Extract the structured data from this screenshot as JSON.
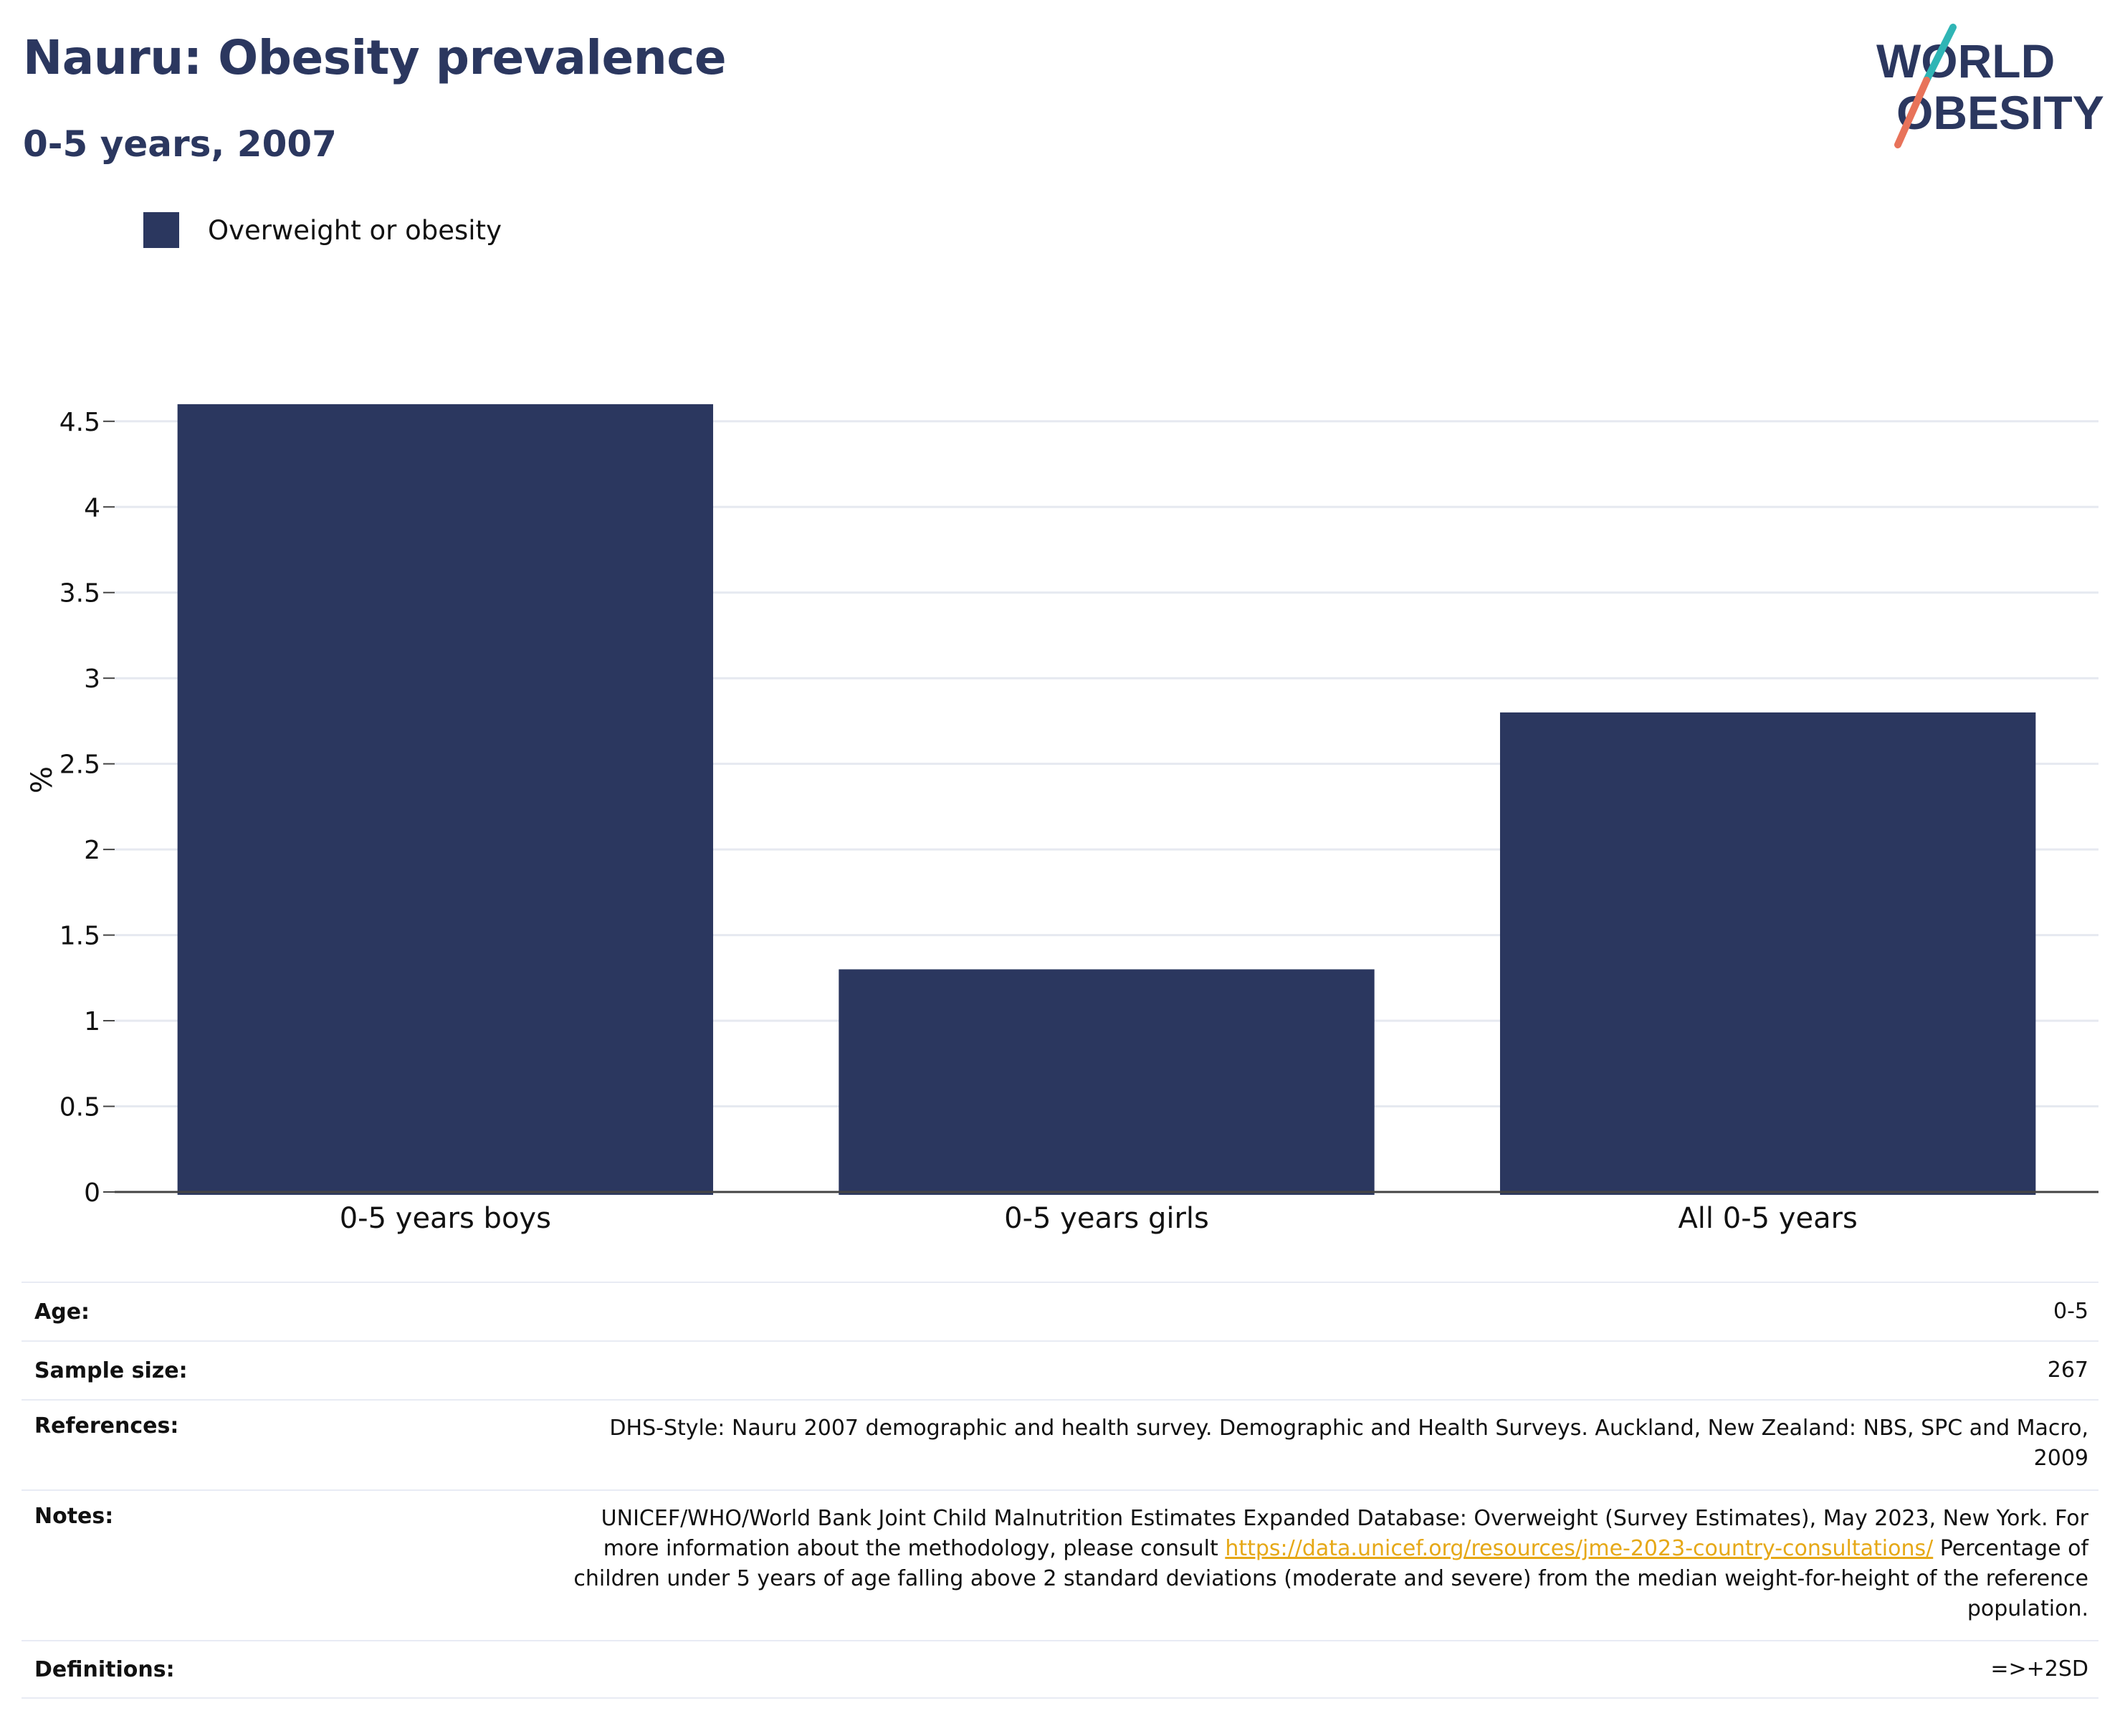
{
  "header": {
    "title": "Nauru: Obesity prevalence",
    "subtitle": "0-5 years, 2007"
  },
  "logo": {
    "line1": "WORLD",
    "line2": "OBESITY"
  },
  "colors": {
    "bar": "#2b375f",
    "grid": "#e6e9f0",
    "link": "#e6a817",
    "logo_teal": "#2fb5b5",
    "logo_coral": "#e8735a"
  },
  "chart_data": {
    "type": "bar",
    "categories": [
      "0-5 years boys",
      "0-5 years girls",
      "All 0-5 years"
    ],
    "series": [
      {
        "name": "Overweight or obesity",
        "values": [
          4.6,
          1.3,
          2.8
        ]
      }
    ],
    "ylabel": "%",
    "xlabel": "",
    "ylim": [
      0,
      4.7
    ],
    "yticks": [
      "0",
      "0.5",
      "1",
      "1.5",
      "2",
      "2.5",
      "3",
      "3.5",
      "4",
      "4.5"
    ],
    "grid": true,
    "legend_position": "top-left"
  },
  "info": {
    "age": {
      "label": "Age:",
      "value": "0-5"
    },
    "sample": {
      "label": "Sample size:",
      "value": "267"
    },
    "references": {
      "label": "References:",
      "value": "DHS-Style: Nauru 2007 demographic and health survey. Demographic and Health Surveys. Auckland, New Zealand: NBS, SPC and Macro, 2009"
    },
    "notes": {
      "label": "Notes:",
      "value_before": "UNICEF/WHO/World Bank Joint Child Malnutrition Estimates Expanded Database: Overweight (Survey Estimates), May 2023, New York. For more information about the methodology, please consult ",
      "link": "https://data.unicef.org/resources/jme-2023-country-consultations/",
      "value_after": " Percentage of children under 5 years of age falling above 2 standard deviations (moderate and severe) from the median weight-for-height of the reference population."
    },
    "definitions": {
      "label": "Definitions:",
      "value": "=>+2SD"
    }
  }
}
